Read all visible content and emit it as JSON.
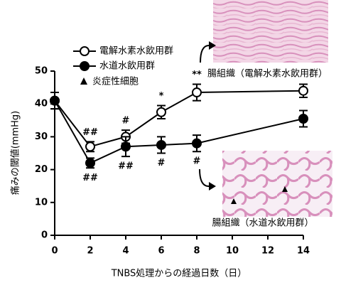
{
  "chart_data": {
    "type": "line",
    "x": [
      0,
      2,
      4,
      6,
      8,
      14
    ],
    "series": [
      {
        "name": "電解水素水飲用群",
        "color": "#000000",
        "marker": "open-circle",
        "values": [
          41,
          27,
          30,
          37.5,
          43.5,
          44
        ],
        "errors": [
          2.5,
          1.5,
          2,
          2,
          2.5,
          2
        ]
      },
      {
        "name": "水道水飲用群",
        "color": "#000000",
        "marker": "filled-circle",
        "values": [
          41,
          22,
          27,
          27.5,
          28,
          35.5
        ],
        "errors": [
          2.5,
          1.5,
          3,
          2.5,
          2.5,
          2.5
        ]
      }
    ],
    "legend_extra": "炎症性細胞",
    "xlabel": "TNBS処理からの経過日数（日）",
    "ylabel": "痛みの閾値(mmHg)",
    "xlim": [
      0,
      14
    ],
    "xticks": [
      0,
      2,
      4,
      6,
      8,
      10,
      12,
      14
    ],
    "ylim": [
      0,
      50
    ],
    "yticks": [
      0,
      10,
      20,
      30,
      40,
      50
    ],
    "annotations": [
      {
        "text": "##",
        "x": 2,
        "series": 0
      },
      {
        "text": "##",
        "x": 2,
        "series": 1
      },
      {
        "text": "#",
        "x": 4,
        "series": 0
      },
      {
        "text": "##",
        "x": 4,
        "series": 1
      },
      {
        "text": "*",
        "x": 6,
        "series": 0
      },
      {
        "text": "#",
        "x": 6,
        "series": 1
      },
      {
        "text": "**",
        "x": 8,
        "series": 0
      },
      {
        "text": "#",
        "x": 8,
        "series": 1
      }
    ],
    "image_captions": [
      "腸組織（電解水素水飲用群）",
      "腸組織（水道水飲用群）"
    ]
  }
}
